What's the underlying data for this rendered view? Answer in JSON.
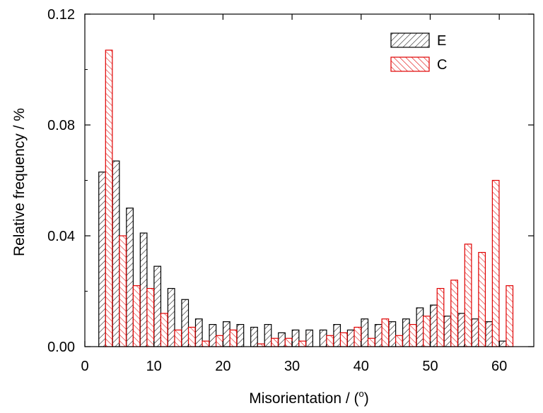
{
  "chart_data": {
    "type": "bar",
    "xlabel": "Misorientation / (",
    "xlabel_superscript": "o",
    "xlabel_suffix": ")",
    "ylabel": "Relative frequency / %",
    "xlim": [
      0,
      65
    ],
    "ylim": [
      0,
      0.12
    ],
    "x_ticks": [
      0,
      10,
      20,
      30,
      40,
      50,
      60
    ],
    "x_tick_labels": [
      "0",
      "10",
      "20",
      "30",
      "40",
      "50",
      "60"
    ],
    "y_ticks": [
      0,
      0.04,
      0.08,
      0.12
    ],
    "y_tick_labels": [
      "0.00",
      "0.04",
      "0.08",
      "0.12"
    ],
    "grid": false,
    "legend_position": "top-right",
    "x": [
      3,
      5,
      7,
      9,
      11,
      13,
      15,
      17,
      19,
      21,
      23,
      25,
      27,
      29,
      31,
      33,
      35,
      37,
      39,
      41,
      43,
      45,
      47,
      49,
      51,
      53,
      55,
      57,
      59,
      61
    ],
    "series": [
      {
        "name": "E",
        "color": "#000000",
        "hatch": "forward-diagonal",
        "values": [
          0.063,
          0.067,
          0.05,
          0.041,
          0.029,
          0.021,
          0.017,
          0.01,
          0.008,
          0.009,
          0.008,
          0.007,
          0.008,
          0.005,
          0.006,
          0.006,
          0.006,
          0.008,
          0.006,
          0.01,
          0.008,
          0.009,
          0.01,
          0.014,
          0.015,
          0.011,
          0.012,
          0.01,
          0.009,
          0.002
        ]
      },
      {
        "name": "C",
        "color": "#e00000",
        "hatch": "back-diagonal",
        "values": [
          0.107,
          0.04,
          0.022,
          0.021,
          0.012,
          0.006,
          0.007,
          0.002,
          0.004,
          0.006,
          0.0,
          0.001,
          0.003,
          0.003,
          0.002,
          0.0,
          0.004,
          0.005,
          0.007,
          0.003,
          0.01,
          0.004,
          0.008,
          0.011,
          0.021,
          0.024,
          0.037,
          0.034,
          0.06,
          0.022
        ]
      }
    ]
  }
}
